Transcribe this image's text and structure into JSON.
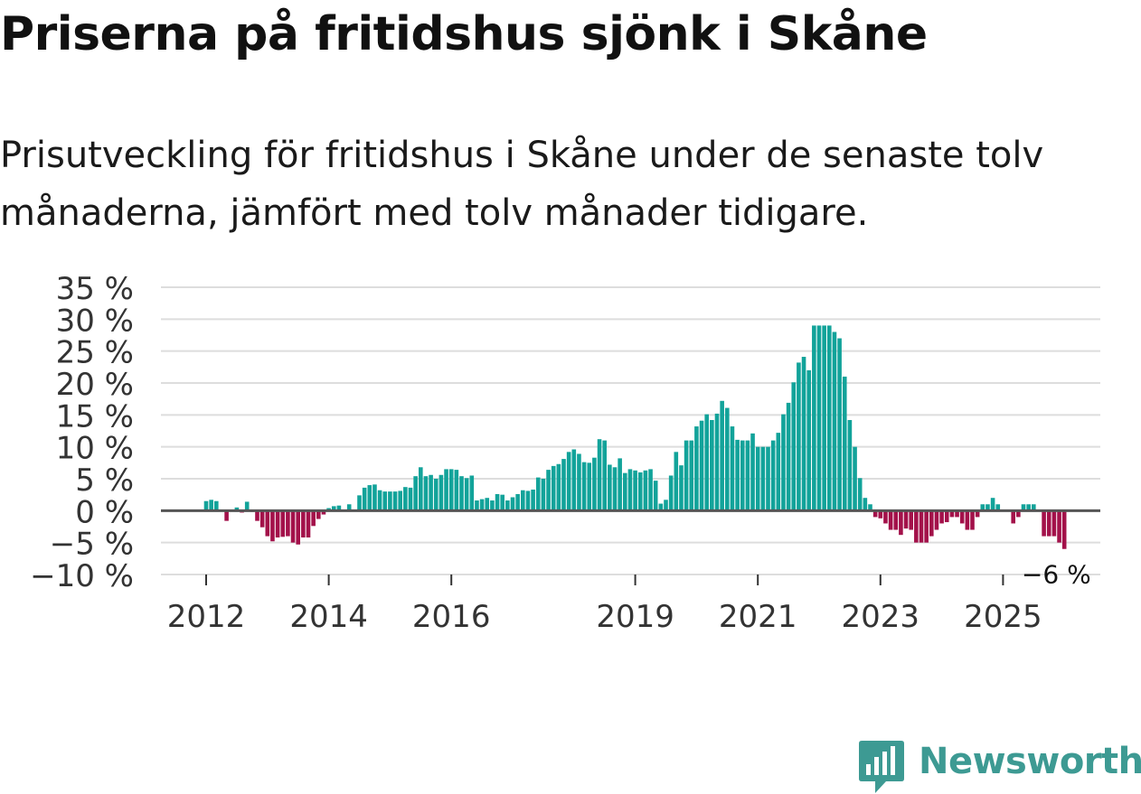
{
  "title": "Priserna på fritidshus sjönk i Skåne",
  "subtitle": "Prisutveckling för fritidshus i Skåne under de senaste tolv månaderna, jämfört med tolv månader tidigare.",
  "brand": {
    "name": "Newsworthy",
    "color": "#3d9a93",
    "icon": "newsworthy-logo-icon"
  },
  "colors": {
    "positive": "#12a39a",
    "negative": "#a3114a",
    "grid": "#dddddd",
    "zero": "#555555"
  },
  "chart_data": {
    "type": "bar",
    "title": "Priserna på fritidshus sjönk i Skåne",
    "xlabel": "",
    "ylabel": "",
    "ylim": [
      -10,
      35
    ],
    "yticks": [
      35,
      30,
      25,
      20,
      15,
      10,
      5,
      0,
      -5,
      -10
    ],
    "ytick_labels": [
      "35 %",
      "30 %",
      "25 %",
      "20 %",
      "15 %",
      "10 %",
      "5 %",
      "0 %",
      "−5 %",
      "−10 %"
    ],
    "x_start": "2012-01",
    "xtick_labels": [
      {
        "label": "2012",
        "index": 0
      },
      {
        "label": "2014",
        "index": 24
      },
      {
        "label": "2016",
        "index": 48
      },
      {
        "label": "2019",
        "index": 84
      },
      {
        "label": "2021",
        "index": 108
      },
      {
        "label": "2023",
        "index": 132
      },
      {
        "label": "2025",
        "index": 156
      }
    ],
    "annotation": {
      "label": "−6 %",
      "index": 166,
      "value": -6
    },
    "series": [
      {
        "name": "Prisutveckling",
        "values": [
          1.5,
          1.7,
          1.5,
          0,
          -1.6,
          0,
          0.5,
          -0.3,
          1.4,
          -0.2,
          -1.6,
          -2.6,
          -4.0,
          -4.8,
          -4.2,
          -4.1,
          -4.0,
          -5.0,
          -5.3,
          -4.2,
          -4.2,
          -2.4,
          -1.3,
          -0.6,
          0.4,
          0.7,
          0.8,
          0.1,
          1.0,
          0.1,
          2.4,
          3.6,
          4.0,
          4.1,
          3.2,
          3.0,
          3.0,
          3.0,
          3.1,
          3.7,
          3.6,
          5.4,
          6.8,
          5.4,
          5.6,
          5.0,
          5.6,
          6.5,
          6.5,
          6.4,
          5.4,
          5.1,
          5.5,
          1.6,
          1.8,
          2.0,
          1.6,
          2.6,
          2.5,
          1.6,
          2.1,
          2.6,
          3.2,
          3.1,
          3.3,
          5.2,
          5.0,
          6.4,
          7.0,
          7.3,
          8.1,
          9.2,
          9.6,
          8.9,
          7.6,
          7.5,
          8.3,
          11.2,
          11.0,
          7.2,
          6.8,
          8.2,
          5.9,
          6.5,
          6.3,
          6.0,
          6.3,
          6.5,
          4.7,
          1.1,
          1.7,
          5.5,
          9.2,
          7.1,
          11.0,
          11.0,
          13.2,
          14.1,
          15.1,
          14.2,
          15.2,
          17.2,
          16.1,
          13.2,
          11.1,
          11.0,
          11.0,
          12.1,
          10.0,
          10.0,
          10.0,
          11.0,
          12.2,
          15.1,
          16.9,
          20.1,
          23.2,
          24.1,
          22.0,
          29.0,
          29.0,
          29.0,
          29.0,
          28.0,
          27.0,
          21.0,
          14.2,
          10.0,
          5.1,
          2.0,
          1.0,
          -1.0,
          -1.2,
          -2.0,
          -3.0,
          -3.0,
          -3.8,
          -2.8,
          -3.0,
          -5.0,
          -5.0,
          -5.0,
          -4.0,
          -3.0,
          -2.0,
          -1.8,
          -1.0,
          -1.0,
          -2.0,
          -3.0,
          -3.0,
          -1.0,
          1.0,
          1.0,
          2.0,
          1.0,
          0,
          0,
          -2.0,
          -1.0,
          1.0,
          1.0,
          1.0,
          0,
          -4.0,
          -4.0,
          -4.0,
          -5.0,
          -6.0
        ]
      }
    ]
  }
}
